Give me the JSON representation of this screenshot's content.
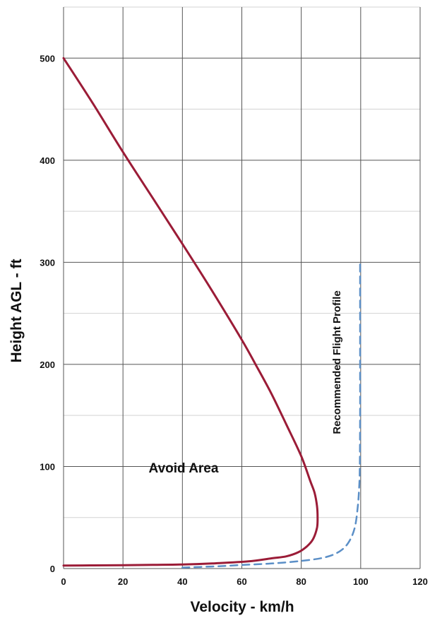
{
  "chart_data": {
    "type": "line",
    "title": "",
    "xlabel": "Velocity - km/h",
    "ylabel": "Height AGL - ft",
    "xlim": [
      0,
      120
    ],
    "ylim": [
      0,
      550
    ],
    "xticks": [
      0,
      20,
      40,
      60,
      80,
      100,
      120
    ],
    "yticks": [
      0,
      100,
      200,
      300,
      400,
      500
    ],
    "grid": true,
    "annotations": [
      "Avoid Area",
      "Recommended Flight Profile"
    ],
    "colors": {
      "avoid": "#9b1c37",
      "profile": "#5b8fc7",
      "grid_major": "#555555",
      "grid_minor": "#d3d3d3"
    },
    "series": [
      {
        "style": "solid",
        "x": [
          0,
          10,
          20,
          30,
          40,
          50,
          60,
          65,
          70,
          75,
          80,
          83,
          84.5,
          85.3,
          85.5,
          85.3,
          84,
          82,
          79,
          75,
          70,
          62,
          50,
          40,
          30,
          20,
          10,
          0
        ],
        "y": [
          500,
          455,
          408,
          363,
          318,
          272,
          224,
          198,
          171,
          141,
          110,
          86,
          74,
          61,
          50,
          40,
          29,
          22,
          16,
          12,
          10,
          7,
          5,
          4,
          3.6,
          3.3,
          3.1,
          3
        ]
      },
      {
        "style": "dashed",
        "x": [
          40,
          50,
          60,
          70,
          80,
          88,
          93,
          96,
          98,
          99,
          99.5,
          99.7,
          99.8,
          99.8,
          99.8,
          99.8
        ],
        "y": [
          1,
          2,
          3.5,
          5,
          7.5,
          11,
          17,
          26,
          40,
          60,
          80,
          100,
          150,
          200,
          250,
          300
        ]
      }
    ]
  }
}
